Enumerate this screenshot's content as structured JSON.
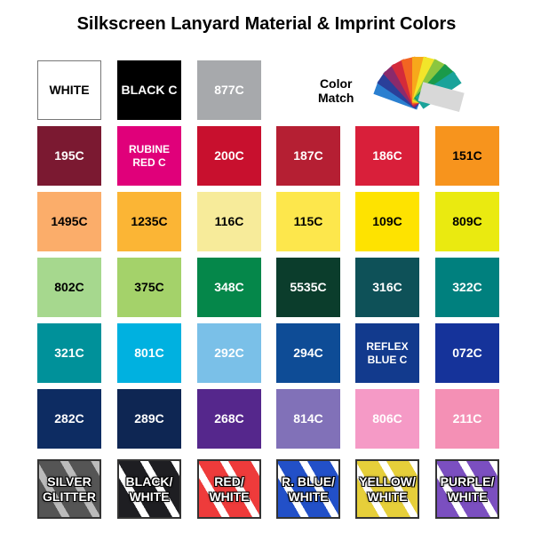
{
  "title": "Silkscreen Lanyard Material & Imprint Colors",
  "color_match": {
    "line1": "Color",
    "line2": "Match"
  },
  "top_row": [
    {
      "label": "WHITE",
      "bg": "#ffffff",
      "fg": "#000000"
    },
    {
      "label": "BLACK C",
      "bg": "#000000",
      "fg": "#ffffff"
    },
    {
      "label": "877C",
      "bg": "#a7a9ac",
      "fg": "#ffffff"
    }
  ],
  "rows": [
    [
      {
        "label": "195C",
        "bg": "#7b1931",
        "fg": "#fff"
      },
      {
        "label": "RUBINE RED C",
        "bg": "#e0007a",
        "fg": "#fff"
      },
      {
        "label": "200C",
        "bg": "#c8102e",
        "fg": "#fff"
      },
      {
        "label": "187C",
        "bg": "#b51f33",
        "fg": "#fff"
      },
      {
        "label": "186C",
        "bg": "#d91f3a",
        "fg": "#fff"
      },
      {
        "label": "151C",
        "bg": "#f7941d",
        "fg": "#000"
      }
    ],
    [
      {
        "label": "1495C",
        "bg": "#fbad6a",
        "fg": "#000"
      },
      {
        "label": "1235C",
        "bg": "#fbb535",
        "fg": "#000"
      },
      {
        "label": "116C",
        "bg": "#f7eb9a",
        "fg": "#000"
      },
      {
        "label": "115C",
        "bg": "#fde74c",
        "fg": "#000"
      },
      {
        "label": "109C",
        "bg": "#fee300",
        "fg": "#000"
      },
      {
        "label": "809C",
        "bg": "#eaea10",
        "fg": "#000"
      }
    ],
    [
      {
        "label": "802C",
        "bg": "#a6d88e",
        "fg": "#000"
      },
      {
        "label": "375C",
        "bg": "#a4d26a",
        "fg": "#000"
      },
      {
        "label": "348C",
        "bg": "#05874a",
        "fg": "#fff"
      },
      {
        "label": "5535C",
        "bg": "#0b3d2c",
        "fg": "#fff"
      },
      {
        "label": "316C",
        "bg": "#0e5158",
        "fg": "#fff"
      },
      {
        "label": "322C",
        "bg": "#00807e",
        "fg": "#fff"
      }
    ],
    [
      {
        "label": "321C",
        "bg": "#00919a",
        "fg": "#fff"
      },
      {
        "label": "801C",
        "bg": "#00b1e0",
        "fg": "#fff"
      },
      {
        "label": "292C",
        "bg": "#7ac0e8",
        "fg": "#fff"
      },
      {
        "label": "294C",
        "bg": "#0e4c96",
        "fg": "#fff"
      },
      {
        "label": "REFLEX BLUE C",
        "bg": "#123a8d",
        "fg": "#fff"
      },
      {
        "label": "072C",
        "bg": "#15339a",
        "fg": "#fff"
      }
    ],
    [
      {
        "label": "282C",
        "bg": "#0d2c62",
        "fg": "#fff"
      },
      {
        "label": "289C",
        "bg": "#0e2653",
        "fg": "#fff"
      },
      {
        "label": "268C",
        "bg": "#55278c",
        "fg": "#fff"
      },
      {
        "label": "814C",
        "bg": "#8171b8",
        "fg": "#fff"
      },
      {
        "label": "806C",
        "bg": "#f59ac6",
        "fg": "#fff"
      },
      {
        "label": "211C",
        "bg": "#f490b5",
        "fg": "#fff"
      }
    ]
  ],
  "materials": [
    {
      "label": "SILVER GLITTER",
      "c1": "#555555",
      "c2": "#bbbbbb"
    },
    {
      "label": "BLACK/ WHITE",
      "c1": "#1e1e22",
      "c2": "#ffffff"
    },
    {
      "label": "RED/ WHITE",
      "c1": "#ee3b3b",
      "c2": "#ffffff"
    },
    {
      "label": "R. BLUE/ WHITE",
      "c1": "#2250c8",
      "c2": "#ffffff"
    },
    {
      "label": "YELLOW/ WHITE",
      "c1": "#e6cf3a",
      "c2": "#ffffff"
    },
    {
      "label": "PURPLE/ WHITE",
      "c1": "#7b4fc0",
      "c2": "#ffffff"
    }
  ]
}
